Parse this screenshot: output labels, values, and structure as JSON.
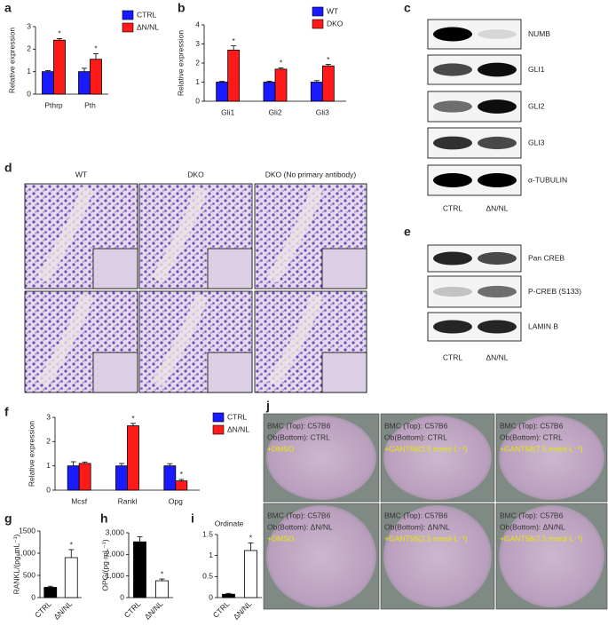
{
  "panel_labels": [
    "a",
    "b",
    "c",
    "d",
    "e",
    "f",
    "g",
    "h",
    "i",
    "j"
  ],
  "chart_data": [
    {
      "type": "bar",
      "ylabel": "Relative expression",
      "categories": [
        "Pthrp",
        "Pth"
      ],
      "series": [
        {
          "name": "CTRL",
          "color": "#1a1aff",
          "values": [
            1.0,
            1.0
          ],
          "errors": [
            0.05,
            0.15
          ],
          "markers": [
            null,
            null
          ]
        },
        {
          "name": "ΔN/NL",
          "color": "#ff1a1a",
          "values": [
            2.4,
            1.55
          ],
          "errors": [
            0.07,
            0.25
          ],
          "markers": [
            "*",
            "*"
          ]
        }
      ],
      "ylim": [
        0,
        3
      ],
      "yticks": [
        0,
        1,
        2,
        3
      ]
    },
    {
      "type": "bar",
      "ylabel": "Relative expression",
      "categories": [
        "Gli1",
        "Gli2",
        "Gli3"
      ],
      "series": [
        {
          "name": "WT",
          "color": "#1a1aff",
          "values": [
            1.0,
            1.0,
            1.0
          ],
          "errors": [
            0.04,
            0.05,
            0.08
          ],
          "markers": [
            null,
            null,
            null
          ]
        },
        {
          "name": "DKO",
          "color": "#ff1a1a",
          "values": [
            2.68,
            1.68,
            1.85
          ],
          "errors": [
            0.22,
            0.07,
            0.08
          ],
          "markers": [
            "*",
            "*",
            "*"
          ]
        }
      ],
      "ylim": [
        0,
        4
      ],
      "yticks": [
        0,
        1,
        2,
        3,
        4
      ]
    },
    {
      "type": "bar",
      "ylabel": "Relative expression",
      "categories": [
        "Mcsf",
        "Rankl",
        "Opg"
      ],
      "series": [
        {
          "name": "CTRL",
          "color": "#1a1aff",
          "values": [
            1.0,
            1.0,
            1.0
          ],
          "errors": [
            0.17,
            0.1,
            0.09
          ],
          "markers": [
            null,
            null,
            null
          ]
        },
        {
          "name": "ΔN/NL",
          "color": "#ff1a1a",
          "values": [
            1.1,
            2.65,
            0.38
          ],
          "errors": [
            0.06,
            0.1,
            0.06
          ],
          "markers": [
            null,
            "*",
            "*"
          ]
        }
      ],
      "ylim": [
        0,
        3
      ],
      "yticks": [
        0,
        1,
        2,
        3
      ]
    },
    {
      "type": "bar",
      "ylabel": "RANKL/(pg·mL⁻¹)",
      "categories": [
        "CTRL",
        "ΔN/NL"
      ],
      "values": [
        230,
        900
      ],
      "errors": [
        25,
        180
      ],
      "colors": [
        "#000000",
        "#ffffff"
      ],
      "markers": [
        null,
        "*"
      ],
      "ylim": [
        0,
        1500
      ],
      "yticks": [
        0,
        500,
        {
          "value": 1000,
          "label": "1,000"
        },
        1500
      ]
    },
    {
      "type": "bar",
      "ylabel": "OPG/(pg·mL⁻¹)",
      "categories": [
        "CTRL",
        "ΔN/NL"
      ],
      "values": [
        2580,
        780
      ],
      "errors": [
        230,
        80
      ],
      "colors": [
        "#000000",
        "#ffffff"
      ],
      "markers": [
        null,
        "*"
      ],
      "ylim": [
        0,
        3000
      ],
      "yticks": [
        0,
        {
          "value": 1000,
          "label": "1,000"
        },
        {
          "value": 2000,
          "label": "2,000"
        },
        {
          "value": 3000,
          "label": "3,000"
        }
      ]
    },
    {
      "type": "bar",
      "title": "Ordinate",
      "categories": [
        "CTRL",
        "ΔN/NL"
      ],
      "values": [
        0.08,
        1.12
      ],
      "errors": [
        0.02,
        0.18
      ],
      "colors": [
        "#000000",
        "#ffffff"
      ],
      "markers": [
        null,
        "*"
      ],
      "ylim": [
        0,
        1.5
      ],
      "yticks": [
        0,
        0.5,
        1,
        1.5
      ]
    }
  ],
  "blots": [
    {
      "rows": [
        "NUMB",
        "GLI1",
        "GLI2",
        "GLI3",
        "α-TUBULIN"
      ],
      "lanes": [
        "CTRL",
        "ΔN/NL"
      ]
    },
    {
      "rows": [
        "Pan CREB",
        "P-CREB (S133)",
        "LAMIN B"
      ],
      "lanes": [
        "CTRL",
        "ΔN/NL"
      ]
    }
  ],
  "histology": {
    "columns": [
      "WT",
      "DKO",
      "DKO (No primary antibody)"
    ]
  },
  "culture_images": [
    {
      "lines": [
        "BMC (Top): C57B6",
        "Ob(Bottom): CTRL",
        "+DMSO"
      ]
    },
    {
      "lines": [
        "BMC (Top): C57B6",
        "Ob(Bottom): CTRL",
        "+GANT58(2.5 mmol·L⁻¹)"
      ]
    },
    {
      "lines": [
        "BMC (Top): C57B6",
        "Ob(Bottom): CTRL",
        "+GANT58(7.5 mmol·L⁻¹)"
      ]
    },
    {
      "lines": [
        "BMC (Top): C57B6",
        "Ob(Bottom): ΔN/NL",
        "+DMSO"
      ]
    },
    {
      "lines": [
        "BMC (Top): C57B6",
        "Ob(Bottom): ΔN/NL",
        "+GANT58(2.5 mmol·L⁻¹)"
      ]
    },
    {
      "lines": [
        "BMC (Top): C57B6",
        "Ob(Bottom): ΔN/NL",
        "+GANT58(7.5 mmol·L⁻¹)"
      ]
    }
  ]
}
